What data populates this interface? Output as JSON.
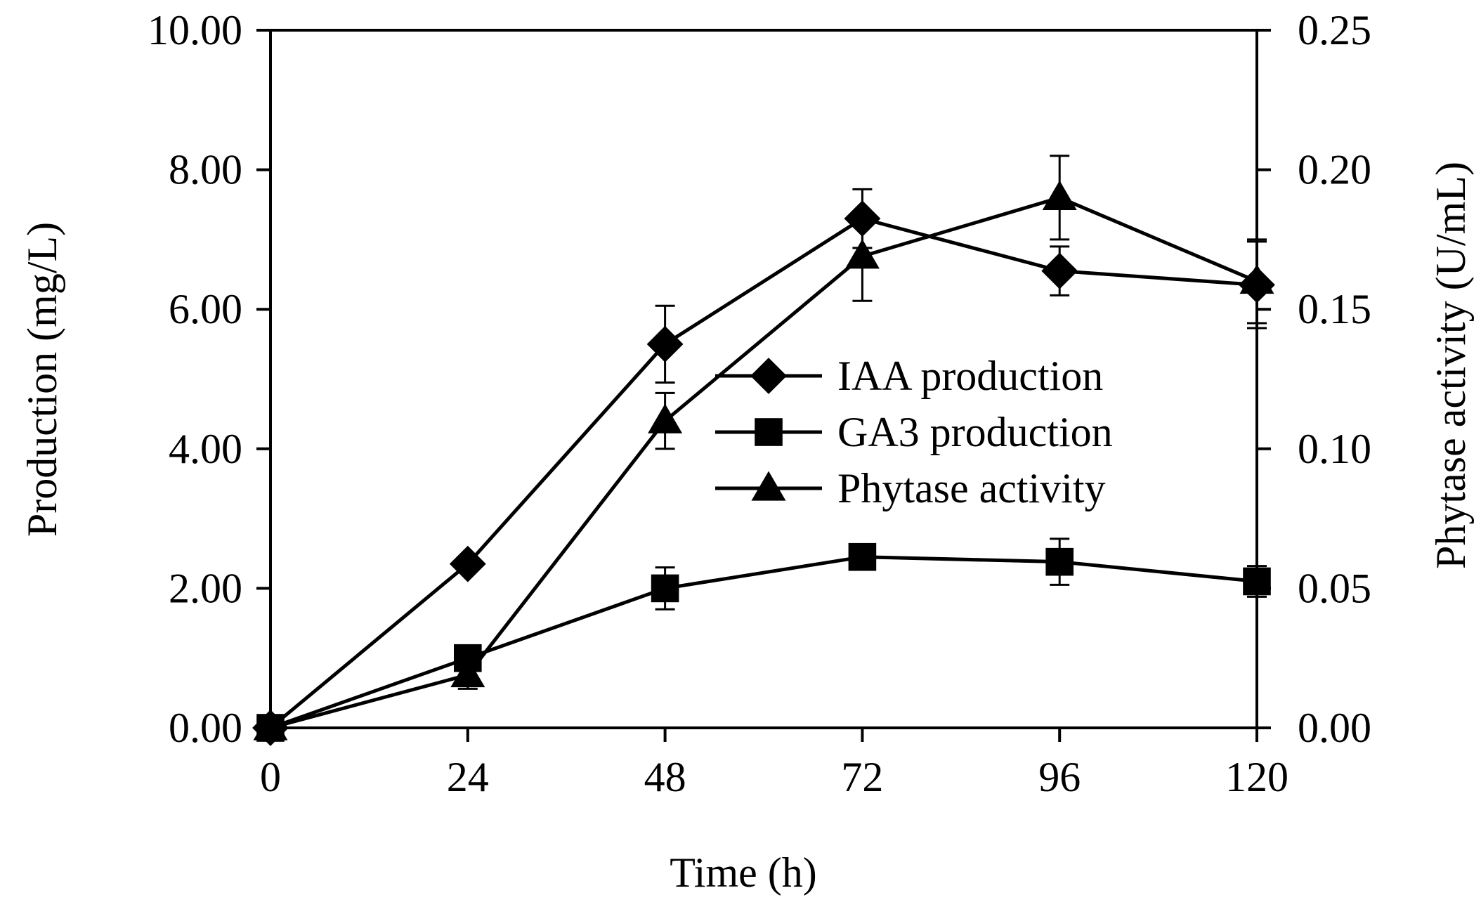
{
  "chart_data": {
    "type": "line",
    "title": "",
    "xlabel": "Time (h)",
    "ylabel": "Production (mg/L)",
    "y2label": "Phytase activity (U/mL)",
    "x": [
      0,
      24,
      48,
      72,
      96,
      120
    ],
    "x_tick_labels": [
      "0",
      "24",
      "48",
      "72",
      "96",
      "120"
    ],
    "xlim": [
      0,
      120
    ],
    "ylim": [
      0,
      10
    ],
    "y2lim": [
      0,
      0.25
    ],
    "y_tick_values": [
      0,
      2,
      4,
      6,
      8,
      10
    ],
    "y_tick_labels": [
      "0.00",
      "2.00",
      "4.00",
      "6.00",
      "8.00",
      "10.00"
    ],
    "y2_tick_values": [
      0,
      0.05,
      0.1,
      0.15,
      0.2,
      0.25
    ],
    "y2_tick_labels": [
      "0.00",
      "0.05",
      "0.10",
      "0.15",
      "0.20",
      "0.25"
    ],
    "grid": false,
    "legend_position": "center-right",
    "series": [
      {
        "name": "IAA production",
        "axis": "left",
        "marker": "diamond",
        "values": [
          0,
          2.35,
          5.5,
          7.3,
          6.55,
          6.35
        ],
        "errors": [
          0,
          0.1,
          0.55,
          0.42,
          0.35,
          0.62
        ]
      },
      {
        "name": "GA3 production",
        "axis": "left",
        "marker": "square",
        "values": [
          0,
          1.0,
          2.0,
          2.45,
          2.38,
          2.1
        ],
        "errors": [
          0,
          0.1,
          0.3,
          0.1,
          0.33,
          0.22
        ]
      },
      {
        "name": "Phytase activity",
        "axis": "right",
        "marker": "triangle",
        "values": [
          0,
          0.019,
          0.11,
          0.169,
          0.19,
          0.16
        ],
        "errors": [
          0,
          0.005,
          0.01,
          0.016,
          0.015,
          0.015
        ]
      }
    ]
  }
}
